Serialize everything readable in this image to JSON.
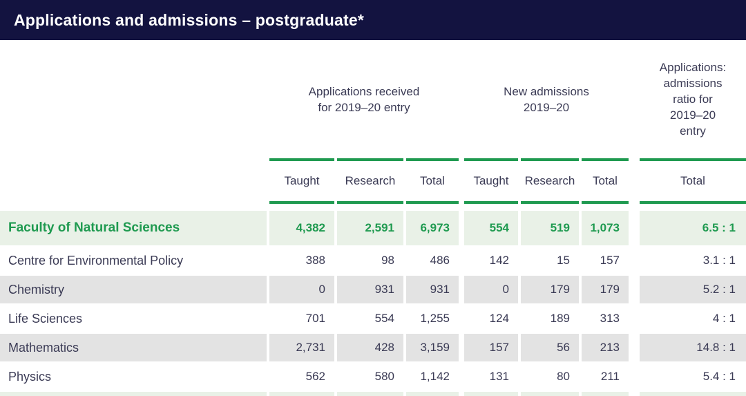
{
  "title_bar": {
    "title": "Applications and admissions – postgraduate*"
  },
  "colors": {
    "navy": "#131340",
    "green": "#1f9a50",
    "light_green_row": "#e9f1e7",
    "gray_row": "#e3e3e3",
    "text_dark": "#3b3b55"
  },
  "table": {
    "column_groups": [
      {
        "label": "Applications received\nfor 2019–20 entry",
        "span": 3
      },
      {
        "label": "New admissions\n2019–20",
        "span": 3
      },
      {
        "label": "Applications:\nadmissions\nratio for\n2019–20\nentry",
        "span": 1
      }
    ],
    "sub_headers": [
      "Taught",
      "Research",
      "Total",
      "Taught",
      "Research",
      "Total",
      "Total"
    ],
    "rows": [
      {
        "label": "Faculty of Natural Sciences",
        "style": "faculty",
        "values": [
          "4,382",
          "2,591",
          "6,973",
          "554",
          "519",
          "1,073",
          "6.5 : 1"
        ]
      },
      {
        "label": "Centre for Environmental Policy",
        "style": "plain",
        "values": [
          "388",
          "98",
          "486",
          "142",
          "15",
          "157",
          "3.1 : 1"
        ]
      },
      {
        "label": "Chemistry",
        "style": "shaded",
        "values": [
          "0",
          "931",
          "931",
          "0",
          "179",
          "179",
          "5.2 : 1"
        ]
      },
      {
        "label": "Life Sciences",
        "style": "plain",
        "values": [
          "701",
          "554",
          "1,255",
          "124",
          "189",
          "313",
          "4 : 1"
        ]
      },
      {
        "label": "Mathematics",
        "style": "shaded",
        "values": [
          "2,731",
          "428",
          "3,159",
          "157",
          "56",
          "213",
          "14.8 : 1"
        ]
      },
      {
        "label": "Physics",
        "style": "plain",
        "values": [
          "562",
          "580",
          "1,142",
          "131",
          "80",
          "211",
          "5.4 : 1"
        ]
      }
    ],
    "partial_next_row_visible": true
  }
}
